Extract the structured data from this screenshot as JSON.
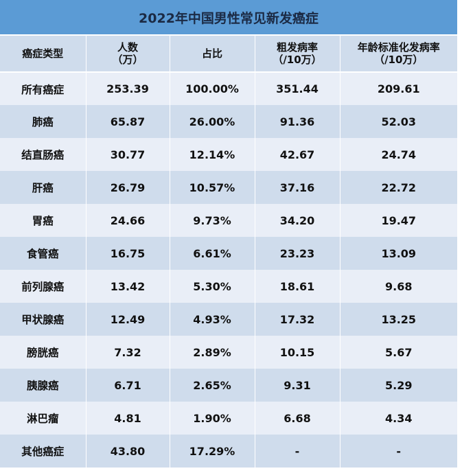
{
  "title": "2022年中国男性常见新发癌症",
  "headers": [
    {
      "line1": "癌症类型",
      "line2": ""
    },
    {
      "line1": "人数",
      "line2": "（万）"
    },
    {
      "line1": "占比",
      "line2": ""
    },
    {
      "line1": "粗发病率",
      "line2": "（/10万）"
    },
    {
      "line1": "年龄标准化发病率",
      "line2": "（/10万）"
    }
  ],
  "rows": [
    [
      "所有癌症",
      "253.39",
      "100.00%",
      "351.44",
      "209.61"
    ],
    [
      "肺癌",
      "65.87",
      "26.00%",
      "91.36",
      "52.03"
    ],
    [
      "结直肠癌",
      "30.77",
      "12.14%",
      "42.67",
      "24.74"
    ],
    [
      "肝癌",
      "26.79",
      "10.57%",
      "37.16",
      "22.72"
    ],
    [
      "胃癌",
      "24.66",
      "9.73%",
      "34.20",
      "19.47"
    ],
    [
      "食管癌",
      "16.75",
      "6.61%",
      "23.23",
      "13.09"
    ],
    [
      "前列腺癌",
      "13.42",
      "5.30%",
      "18.61",
      "9.68"
    ],
    [
      "甲状腺癌",
      "12.49",
      "4.93%",
      "17.32",
      "13.25"
    ],
    [
      "膀胱癌",
      "7.32",
      "2.89%",
      "10.15",
      "5.67"
    ],
    [
      "胰腺癌",
      "6.71",
      "2.65%",
      "9.31",
      "5.29"
    ],
    [
      "淋巴瘤",
      "4.81",
      "1.90%",
      "6.68",
      "4.34"
    ],
    [
      "其他癌症",
      "43.80",
      "17.29%",
      "-",
      "-"
    ]
  ],
  "colors": {
    "title_bg": "#5b9bd5",
    "title_text": "#1b2a44",
    "row_light": "#e9eef7",
    "row_dark": "#cfdcec"
  }
}
